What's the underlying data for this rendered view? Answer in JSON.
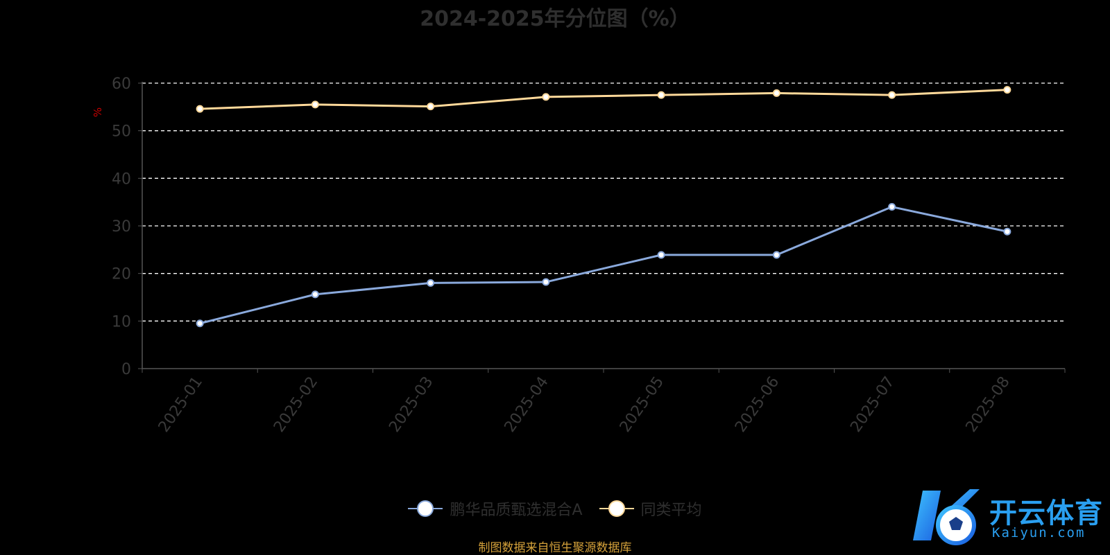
{
  "chart_data": {
    "type": "line",
    "title": "2024-2025年分位图（%）",
    "ylabel": "%",
    "xlabel": "",
    "categories": [
      "2025-01",
      "2025-02",
      "2025-03",
      "2025-04",
      "2025-05",
      "2025-06",
      "2025-07",
      "2025-08"
    ],
    "ylim": [
      0,
      60
    ],
    "yticks": [
      0,
      10,
      20,
      30,
      40,
      50,
      60
    ],
    "grid": true,
    "legend_position": "bottom",
    "series": [
      {
        "name": "鹏华品质甄选混合A",
        "color": "#8aa9dc",
        "values": [
          9.5,
          15.6,
          18.0,
          18.2,
          23.9,
          23.9,
          34.0,
          28.8
        ]
      },
      {
        "name": "同类平均",
        "color": "#ffd99a",
        "values": [
          54.6,
          55.5,
          55.1,
          57.1,
          57.5,
          57.9,
          57.5,
          58.6
        ]
      }
    ]
  },
  "footer": {
    "source": "制图数据来自恒生聚源数据库"
  },
  "logo": {
    "cn_text": "开云体育",
    "en_text": "Kaiyun.com"
  },
  "colors": {
    "background": "#000000",
    "title": "#2f2f2f",
    "axis": "#555555",
    "grid": "#ffffff",
    "ylabel": "#cc0000",
    "source": "#d4a13a",
    "logo": "#2a9ff0"
  }
}
